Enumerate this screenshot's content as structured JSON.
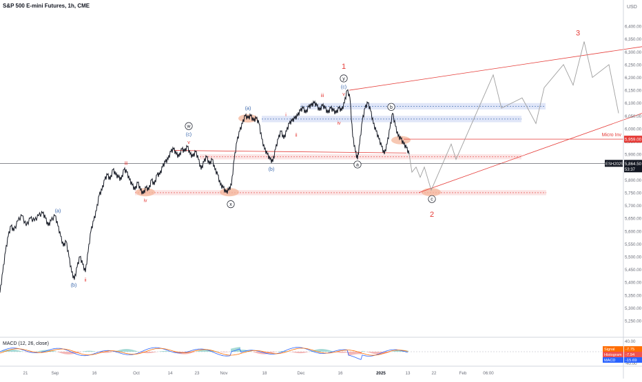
{
  "header": {
    "title": "S&P 500 E-mini Futures, 1h, CME"
  },
  "currency": "USD",
  "colors": {
    "red": "#e53935",
    "blue": "#2f5fa8",
    "black": "#131722",
    "zone_blue": "#dde3f7",
    "zone_pink": "#fbe1e1",
    "zone_orange": "#f4b59a",
    "projection": "#9e9e9e",
    "axis_text": "#6a6d78",
    "grid": "#e8e8ec"
  },
  "chart_data": {
    "type": "line",
    "symbol": "ESH2025",
    "ylim": [
      5250,
      6470
    ],
    "price_ticks": [
      6400,
      6350,
      6300,
      6250,
      6200,
      6150,
      6100,
      6050,
      6000,
      5950,
      5900,
      5850,
      5800,
      5750,
      5700,
      5650,
      5600,
      5550,
      5500,
      5450,
      5400,
      5350,
      5300,
      5250
    ],
    "x_tick_labels": [
      "21",
      "Sep",
      "16",
      "Oct",
      "14",
      "23",
      "Nov",
      "18",
      "Dec",
      "16",
      "2025",
      "13",
      "22",
      "Feb",
      "06:00"
    ],
    "last_price": {
      "symbol": "ESH2025",
      "value": "5,864.50",
      "countdown": "53:37"
    },
    "micro_inv": {
      "label": "Micro Inv",
      "value": "5,959.00"
    },
    "price_series": [
      {
        "t": 0,
        "p": 5360
      },
      {
        "t": 4,
        "p": 5440
      },
      {
        "t": 8,
        "p": 5520
      },
      {
        "t": 12,
        "p": 5580
      },
      {
        "t": 16,
        "p": 5620
      },
      {
        "t": 20,
        "p": 5600
      },
      {
        "t": 26,
        "p": 5640
      },
      {
        "t": 32,
        "p": 5660
      },
      {
        "t": 38,
        "p": 5620
      },
      {
        "t": 44,
        "p": 5650
      },
      {
        "t": 50,
        "p": 5640
      },
      {
        "t": 56,
        "p": 5660
      },
      {
        "t": 62,
        "p": 5670
      },
      {
        "t": 66,
        "p": 5650
      },
      {
        "t": 70,
        "p": 5620
      },
      {
        "t": 74,
        "p": 5640
      },
      {
        "t": 80,
        "p": 5660
      },
      {
        "t": 84,
        "p": 5620
      },
      {
        "t": 88,
        "p": 5580
      },
      {
        "t": 92,
        "p": 5540
      },
      {
        "t": 96,
        "p": 5560
      },
      {
        "t": 100,
        "p": 5500
      },
      {
        "t": 104,
        "p": 5440
      },
      {
        "t": 108,
        "p": 5410
      },
      {
        "t": 112,
        "p": 5460
      },
      {
        "t": 116,
        "p": 5500
      },
      {
        "t": 120,
        "p": 5470
      },
      {
        "t": 124,
        "p": 5440
      },
      {
        "t": 128,
        "p": 5520
      },
      {
        "t": 132,
        "p": 5600
      },
      {
        "t": 136,
        "p": 5640
      },
      {
        "t": 140,
        "p": 5680
      },
      {
        "t": 144,
        "p": 5740
      },
      {
        "t": 148,
        "p": 5760
      },
      {
        "t": 152,
        "p": 5800
      },
      {
        "t": 156,
        "p": 5820
      },
      {
        "t": 160,
        "p": 5800
      },
      {
        "t": 164,
        "p": 5840
      },
      {
        "t": 168,
        "p": 5820
      },
      {
        "t": 172,
        "p": 5810
      },
      {
        "t": 176,
        "p": 5800
      },
      {
        "t": 180,
        "p": 5840
      },
      {
        "t": 184,
        "p": 5830
      },
      {
        "t": 188,
        "p": 5800
      },
      {
        "t": 192,
        "p": 5780
      },
      {
        "t": 196,
        "p": 5760
      },
      {
        "t": 200,
        "p": 5790
      },
      {
        "t": 204,
        "p": 5760
      },
      {
        "t": 208,
        "p": 5745
      },
      {
        "t": 212,
        "p": 5770
      },
      {
        "t": 216,
        "p": 5760
      },
      {
        "t": 220,
        "p": 5800
      },
      {
        "t": 224,
        "p": 5780
      },
      {
        "t": 228,
        "p": 5820
      },
      {
        "t": 232,
        "p": 5820
      },
      {
        "t": 236,
        "p": 5850
      },
      {
        "t": 240,
        "p": 5870
      },
      {
        "t": 244,
        "p": 5880
      },
      {
        "t": 248,
        "p": 5910
      },
      {
        "t": 252,
        "p": 5920
      },
      {
        "t": 256,
        "p": 5900
      },
      {
        "t": 260,
        "p": 5890
      },
      {
        "t": 264,
        "p": 5920
      },
      {
        "t": 268,
        "p": 5910
      },
      {
        "t": 272,
        "p": 5930
      },
      {
        "t": 276,
        "p": 5900
      },
      {
        "t": 280,
        "p": 5890
      },
      {
        "t": 284,
        "p": 5910
      },
      {
        "t": 288,
        "p": 5880
      },
      {
        "t": 292,
        "p": 5840
      },
      {
        "t": 296,
        "p": 5870
      },
      {
        "t": 300,
        "p": 5890
      },
      {
        "t": 304,
        "p": 5860
      },
      {
        "t": 308,
        "p": 5880
      },
      {
        "t": 312,
        "p": 5840
      },
      {
        "t": 316,
        "p": 5820
      },
      {
        "t": 320,
        "p": 5780
      },
      {
        "t": 324,
        "p": 5770
      },
      {
        "t": 328,
        "p": 5750
      },
      {
        "t": 332,
        "p": 5760
      },
      {
        "t": 336,
        "p": 5780
      },
      {
        "t": 340,
        "p": 5880
      },
      {
        "t": 344,
        "p": 5950
      },
      {
        "t": 348,
        "p": 5990
      },
      {
        "t": 352,
        "p": 6020
      },
      {
        "t": 356,
        "p": 6050
      },
      {
        "t": 360,
        "p": 6040
      },
      {
        "t": 364,
        "p": 6050
      },
      {
        "t": 368,
        "p": 6030
      },
      {
        "t": 372,
        "p": 6040
      },
      {
        "t": 376,
        "p": 6020
      },
      {
        "t": 380,
        "p": 5960
      },
      {
        "t": 384,
        "p": 5920
      },
      {
        "t": 388,
        "p": 5900
      },
      {
        "t": 392,
        "p": 5880
      },
      {
        "t": 396,
        "p": 5870
      },
      {
        "t": 400,
        "p": 5920
      },
      {
        "t": 404,
        "p": 5960
      },
      {
        "t": 408,
        "p": 5990
      },
      {
        "t": 412,
        "p": 5960
      },
      {
        "t": 416,
        "p": 5990
      },
      {
        "t": 420,
        "p": 6020
      },
      {
        "t": 424,
        "p": 6030
      },
      {
        "t": 428,
        "p": 6040
      },
      {
        "t": 432,
        "p": 6050
      },
      {
        "t": 436,
        "p": 6070
      },
      {
        "t": 440,
        "p": 6080
      },
      {
        "t": 444,
        "p": 6060
      },
      {
        "t": 448,
        "p": 6085
      },
      {
        "t": 452,
        "p": 6090
      },
      {
        "t": 456,
        "p": 6100
      },
      {
        "t": 460,
        "p": 6090
      },
      {
        "t": 464,
        "p": 6070
      },
      {
        "t": 468,
        "p": 6090
      },
      {
        "t": 472,
        "p": 6080
      },
      {
        "t": 476,
        "p": 6060
      },
      {
        "t": 480,
        "p": 6080
      },
      {
        "t": 484,
        "p": 6070
      },
      {
        "t": 488,
        "p": 6060
      },
      {
        "t": 492,
        "p": 6080
      },
      {
        "t": 496,
        "p": 6070
      },
      {
        "t": 500,
        "p": 6100
      },
      {
        "t": 504,
        "p": 6150
      },
      {
        "t": 508,
        "p": 6120
      },
      {
        "t": 512,
        "p": 5970
      },
      {
        "t": 516,
        "p": 5910
      },
      {
        "t": 519,
        "p": 5880
      },
      {
        "t": 522,
        "p": 5940
      },
      {
        "t": 526,
        "p": 6030
      },
      {
        "t": 530,
        "p": 6080
      },
      {
        "t": 534,
        "p": 6100
      },
      {
        "t": 538,
        "p": 6070
      },
      {
        "t": 542,
        "p": 6020
      },
      {
        "t": 546,
        "p": 5990
      },
      {
        "t": 550,
        "p": 5960
      },
      {
        "t": 554,
        "p": 5930
      },
      {
        "t": 558,
        "p": 5900
      },
      {
        "t": 562,
        "p": 5940
      },
      {
        "t": 566,
        "p": 6000
      },
      {
        "t": 570,
        "p": 6060
      },
      {
        "t": 574,
        "p": 6010
      },
      {
        "t": 578,
        "p": 5970
      },
      {
        "t": 582,
        "p": 5960
      },
      {
        "t": 586,
        "p": 5940
      },
      {
        "t": 590,
        "p": 5925
      },
      {
        "t": 594,
        "p": 5900
      }
    ],
    "projection_path": [
      {
        "t": 594,
        "p": 5900
      },
      {
        "t": 598,
        "p": 5830
      },
      {
        "t": 604,
        "p": 5850
      },
      {
        "t": 610,
        "p": 5810
      },
      {
        "t": 616,
        "p": 5850
      },
      {
        "t": 626,
        "p": 5760
      },
      {
        "t": 655,
        "p": 5940
      },
      {
        "t": 662,
        "p": 5880
      },
      {
        "t": 716,
        "p": 6210
      },
      {
        "t": 728,
        "p": 6080
      },
      {
        "t": 758,
        "p": 6120
      },
      {
        "t": 778,
        "p": 6020
      },
      {
        "t": 790,
        "p": 6160
      },
      {
        "t": 818,
        "p": 6250
      },
      {
        "t": 832,
        "p": 6170
      },
      {
        "t": 848,
        "p": 6340
      },
      {
        "t": 860,
        "p": 6200
      },
      {
        "t": 884,
        "p": 6250
      },
      {
        "t": 898,
        "p": 6060
      }
    ],
    "trend_lines": [
      {
        "from": {
          "t": 507,
          "p": 6150
        },
        "to": {
          "t": 932,
          "p": 6320
        }
      },
      {
        "from": {
          "t": 608,
          "p": 5750
        },
        "to": {
          "t": 932,
          "p": 6060
        }
      },
      {
        "from": {
          "t": 252,
          "p": 5915
        },
        "to": {
          "t": 590,
          "p": 5905
        }
      },
      {
        "from": {
          "t": 586,
          "p": 5959
        },
        "to": {
          "t": 905,
          "p": 5959
        }
      }
    ],
    "zones": [
      {
        "color": "blue",
        "p1": 6075,
        "p2": 6100,
        "t1": 436,
        "t2": 792
      },
      {
        "color": "blue",
        "p1": 6025,
        "p2": 6050,
        "t1": 380,
        "t2": 757
      },
      {
        "color": "pink",
        "p1": 5880,
        "p2": 5900,
        "t1": 290,
        "t2": 757
      },
      {
        "color": "pink",
        "p1": 5740,
        "p2": 5760,
        "t1": 196,
        "t2": 793
      }
    ],
    "highlights": [
      {
        "t": 360,
        "p": 6040
      },
      {
        "t": 211,
        "p": 5752
      },
      {
        "t": 333,
        "p": 5752
      },
      {
        "t": 626,
        "p": 5752
      },
      {
        "t": 582,
        "p": 5955
      }
    ],
    "labels": [
      {
        "text": "1",
        "color": "red",
        "t": 499,
        "p": 6240,
        "size": 11
      },
      {
        "text": "y",
        "color": "black",
        "t": 499,
        "p": 6196,
        "circle": true
      },
      {
        "text": "(c)",
        "color": "blue",
        "t": 499,
        "p": 6163
      },
      {
        "text": "v",
        "color": "red",
        "t": 499,
        "p": 6135
      },
      {
        "text": "iii",
        "color": "red",
        "t": 468,
        "p": 6130
      },
      {
        "text": "iv",
        "color": "red",
        "t": 492,
        "p": 6023
      },
      {
        "text": "i",
        "color": "red",
        "t": 415,
        "p": 6055
      },
      {
        "text": "ii",
        "color": "red",
        "t": 430,
        "p": 5975
      },
      {
        "text": "(a)",
        "color": "blue",
        "t": 360,
        "p": 6080
      },
      {
        "text": "(b)",
        "color": "blue",
        "t": 394,
        "p": 5843
      },
      {
        "text": "w",
        "color": "black",
        "t": 274,
        "p": 6010,
        "circle": true
      },
      {
        "text": "(c)",
        "color": "blue",
        "t": 274,
        "p": 5978
      },
      {
        "text": "v",
        "color": "red",
        "t": 274,
        "p": 5947
      },
      {
        "text": "iii",
        "color": "red",
        "t": 183,
        "p": 5865
      },
      {
        "text": "iv",
        "color": "red",
        "t": 211,
        "p": 5720
      },
      {
        "text": "x",
        "color": "black",
        "t": 335,
        "p": 5705,
        "circle": true
      },
      {
        "text": "(a)",
        "color": "blue",
        "t": 84,
        "p": 5680
      },
      {
        "text": "(b)",
        "color": "blue",
        "t": 107,
        "p": 5390
      },
      {
        "text": "ii",
        "color": "red",
        "t": 124,
        "p": 5410
      },
      {
        "text": "b",
        "color": "black",
        "t": 568,
        "p": 6085,
        "circle": true
      },
      {
        "text": "a",
        "color": "black",
        "t": 519,
        "p": 5860,
        "circle": true
      },
      {
        "text": "c",
        "color": "black",
        "t": 627,
        "p": 5725,
        "circle": true
      },
      {
        "text": "2",
        "color": "red",
        "t": 627,
        "p": 5662,
        "size": 11
      },
      {
        "text": "3",
        "color": "red",
        "t": 839,
        "p": 6370,
        "size": 11
      }
    ]
  },
  "macd": {
    "label": "MACD (12, 26, close)",
    "ticks": [
      "40.00",
      "0.00",
      "-40.00"
    ],
    "signal_label": "Signal",
    "signal_value": "-7.75",
    "histogram_label": "Histogram",
    "histogram_value": "-7.94",
    "macd_label": "MACD",
    "macd_value": "-15.69"
  }
}
